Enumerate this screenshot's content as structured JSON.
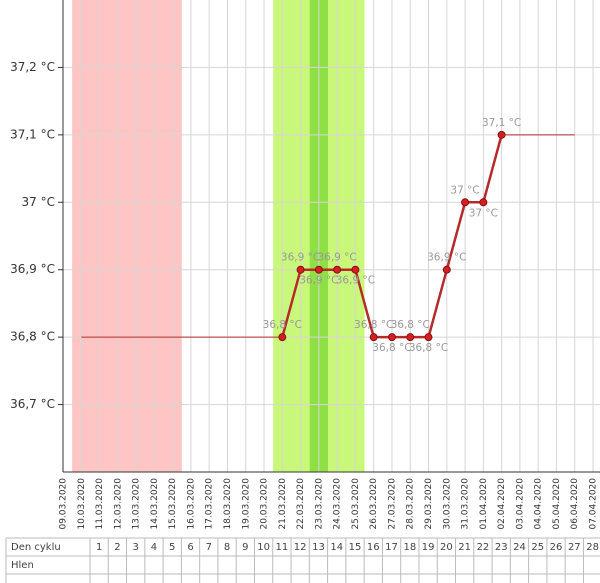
{
  "chart_data": {
    "type": "line",
    "categories": [
      "09.03.2020",
      "10.03.2020",
      "11.03.2020",
      "12.03.2020",
      "13.03.2020",
      "14.03.2020",
      "15.03.2020",
      "16.03.2020",
      "17.03.2020",
      "18.03.2020",
      "19.03.2020",
      "20.03.2020",
      "21.03.2020",
      "22.03.2020",
      "23.03.2020",
      "24.03.2020",
      "25.03.2020",
      "26.03.2020",
      "27.03.2020",
      "28.03.2020",
      "29.03.2020",
      "30.03.2020",
      "31.03.2020",
      "01.04.2020",
      "02.04.2020",
      "03.04.2020",
      "04.04.2020",
      "05.04.2020",
      "06.04.2020",
      "07.04.2020"
    ],
    "series": [
      {
        "color": "#b52a2a",
        "values": [
          null,
          null,
          null,
          null,
          null,
          null,
          null,
          null,
          null,
          null,
          null,
          null,
          36.8,
          36.9,
          36.9,
          36.9,
          36.9,
          36.8,
          36.8,
          36.8,
          36.8,
          36.9,
          37.0,
          37.0,
          37.1,
          null,
          null,
          null,
          null,
          null
        ],
        "value_labels": [
          null,
          null,
          null,
          null,
          null,
          null,
          null,
          null,
          null,
          null,
          null,
          null,
          "36,8 °C",
          "36,9 °C",
          "36,9 °C",
          "36,9 °C",
          "36,9 °C",
          "36,8 °C",
          "36,8 °C",
          "36,8 °C",
          "36,8 °C",
          "36,9 °C",
          "37 °C",
          "37 °C",
          "37,1 °C",
          null,
          null,
          null,
          null,
          null
        ]
      },
      {
        "color": "#b52a2a",
        "values": [
          null,
          36.8,
          36.8,
          36.8,
          36.8,
          36.8,
          36.8,
          36.8,
          36.8,
          36.8,
          36.8,
          36.8,
          36.8,
          null,
          null,
          null,
          null,
          null,
          null,
          null,
          null,
          null,
          null,
          null,
          37.1,
          37.1,
          37.1,
          37.1,
          37.1,
          null
        ]
      }
    ],
    "ylim": [
      36.6,
      37.3
    ],
    "yticks": [
      {
        "value": 36.7,
        "label": "36,7 °C"
      },
      {
        "value": 36.8,
        "label": "36,8 °C"
      },
      {
        "value": 36.9,
        "label": "36,9 °C"
      },
      {
        "value": 37,
        "label": "37 °C"
      },
      {
        "value": 37.1,
        "label": "37,1 °C"
      },
      {
        "value": 37.2,
        "label": "37,2 °C"
      }
    ],
    "grid": true
  },
  "table": {
    "header": "Den cyklu",
    "days": [
      1,
      2,
      3,
      4,
      5,
      6,
      7,
      8,
      9,
      10,
      11,
      12,
      13,
      14,
      15,
      16,
      17,
      18,
      19,
      20,
      21,
      22,
      23,
      24,
      25,
      26,
      27,
      28
    ],
    "rows": [
      "Hlen"
    ]
  }
}
